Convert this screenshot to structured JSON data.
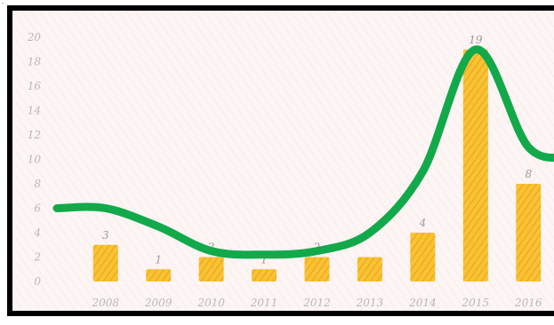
{
  "corner_mark": "-",
  "chart_data": {
    "type": "bar",
    "title": "",
    "xlabel": "",
    "ylabel": "",
    "categories": [
      "2008",
      "2009",
      "2010",
      "2011",
      "2012",
      "2013",
      "2014",
      "2015",
      "2016"
    ],
    "values": [
      3,
      1,
      2,
      1,
      2,
      2,
      4,
      19,
      8
    ],
    "data_labels": [
      "3",
      "1",
      "2",
      "1",
      "2",
      "",
      "4",
      "19",
      "8"
    ],
    "y_ticks": [
      0,
      2,
      4,
      6,
      8,
      10,
      12,
      14,
      16,
      18,
      20
    ],
    "ylim": [
      0,
      20
    ],
    "grid": false,
    "colors": {
      "bar": "#f6b41a",
      "trend": "#12a94a",
      "background": "#fdf4f4",
      "frame": "#000000"
    },
    "trend_line": [
      6,
      4.5,
      2.5,
      2.2,
      2.5,
      4,
      9,
      19,
      11
    ]
  }
}
